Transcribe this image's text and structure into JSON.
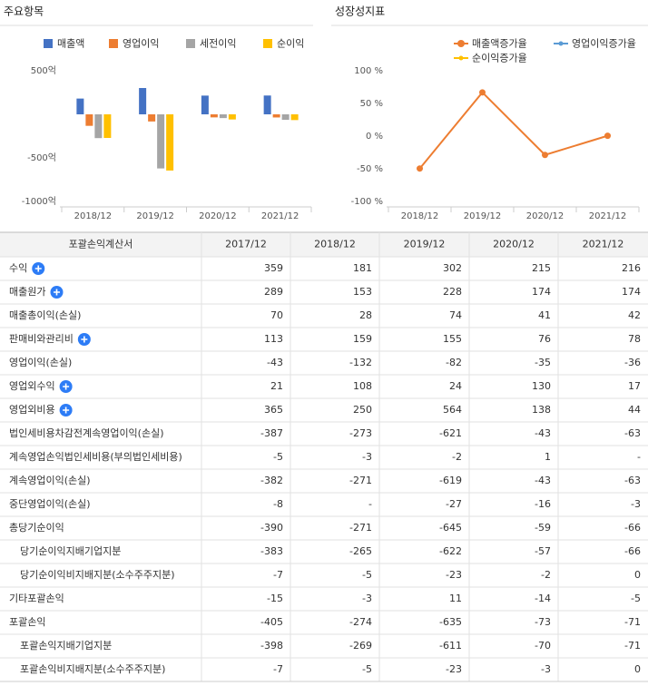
{
  "chart_data": [
    {
      "type": "bar",
      "title": "주요항목",
      "categories": [
        "2018/12",
        "2019/12",
        "2020/12",
        "2021/12"
      ],
      "series": [
        {
          "name": "매출액",
          "color": "#4472c4",
          "values": [
            181,
            302,
            215,
            216
          ]
        },
        {
          "name": "영업이익",
          "color": "#ed7d31",
          "values": [
            -132,
            -82,
            -35,
            -36
          ]
        },
        {
          "name": "세전이익",
          "color": "#a5a5a5",
          "values": [
            -273,
            -621,
            -43,
            -63
          ]
        },
        {
          "name": "순이익",
          "color": "#ffc000",
          "values": [
            -271,
            -645,
            -59,
            -66
          ]
        }
      ],
      "ylim": [
        -1000,
        500
      ],
      "yticks": [
        {
          "value": 500,
          "label": "500억"
        },
        {
          "value": -500,
          "label": "-500억"
        },
        {
          "value": -1000,
          "label": "-1000억"
        }
      ]
    },
    {
      "type": "line",
      "title": "성장성지표",
      "categories": [
        "2018/12",
        "2019/12",
        "2020/12",
        "2021/12"
      ],
      "series": [
        {
          "name": "매출액증가율",
          "color": "#ed7d31",
          "values": [
            -49.6,
            66.9,
            -28.8,
            0.5
          ]
        },
        {
          "name": "영업이익증가율",
          "color": "#5b9bd5",
          "values": [
            null,
            null,
            null,
            null
          ]
        },
        {
          "name": "순이익증가율",
          "color": "#ffc000",
          "values": [
            null,
            null,
            null,
            null
          ]
        }
      ],
      "ylim": [
        -100,
        100
      ],
      "yticks": [
        {
          "value": 100,
          "label": "100 %"
        },
        {
          "value": 50,
          "label": "50 %"
        },
        {
          "value": 0,
          "label": "0 %"
        },
        {
          "value": -50,
          "label": "-50 %"
        },
        {
          "value": -100,
          "label": "-100 %"
        }
      ]
    }
  ],
  "table": {
    "header": [
      "포괄손익계산서",
      "2017/12",
      "2018/12",
      "2019/12",
      "2020/12",
      "2021/12"
    ],
    "rows": [
      [
        "수익",
        359,
        181,
        302,
        215,
        216
      ],
      [
        "매출원가",
        289,
        153,
        228,
        174,
        174
      ],
      [
        "매출총이익(손실)",
        70,
        28,
        74,
        41,
        42
      ],
      [
        "판매비와관리비",
        113,
        159,
        155,
        76,
        78
      ],
      [
        "영업이익(손실)",
        -43,
        -132,
        -82,
        -35,
        -36
      ],
      [
        "영업외수익",
        21,
        108,
        24,
        130,
        17
      ],
      [
        "영업외비용",
        365,
        250,
        564,
        138,
        44
      ],
      [
        "법인세비용차감전계속영업이익(손실)",
        -387,
        -273,
        -621,
        -43,
        -63
      ],
      [
        "계속영업손익법인세비용(부의법인세비용)",
        -5,
        -3,
        -2,
        1,
        "-"
      ],
      [
        "계속영업이익(손실)",
        -382,
        -271,
        -619,
        -43,
        -63
      ],
      [
        "중단영업이익(손실)",
        -8,
        "-",
        -27,
        -16,
        -3
      ],
      [
        "총당기순이익",
        -390,
        -271,
        -645,
        -59,
        -66
      ],
      [
        "당기순이익지배기업지분",
        -383,
        -265,
        -622,
        -57,
        -66
      ],
      [
        "당기순이익비지배지분(소수주주지분)",
        -7,
        -5,
        -23,
        -2,
        0
      ],
      [
        "기타포괄손익",
        -15,
        -3,
        11,
        -14,
        -5
      ],
      [
        "포괄손익",
        -405,
        -274,
        -635,
        -73,
        -71
      ],
      [
        "포괄손익지배기업지분",
        -398,
        -269,
        -611,
        -70,
        -71
      ],
      [
        "포괄손익비지배지분(소수주주지분)",
        -7,
        -5,
        -23,
        -3,
        0
      ]
    ]
  }
}
